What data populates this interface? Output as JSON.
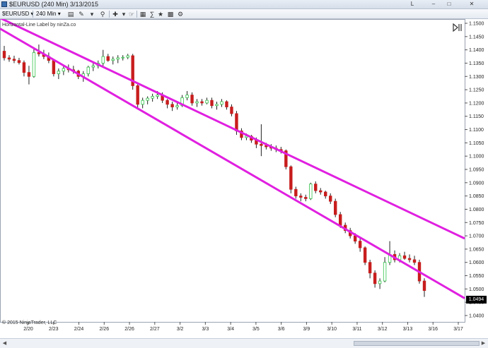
{
  "window": {
    "title": "$EURUSD (240 Min)  3/13/2015",
    "help_label": "L",
    "min_label": "–",
    "max_label": "□",
    "close_label": "✕"
  },
  "toolbar": {
    "instrument": "$EURUSD",
    "interval": "240 Min",
    "icons": [
      "bar-chart-icon",
      "pencil-icon",
      "magnifier-icon",
      "crosshair-icon",
      "hand-icon",
      "grid-icon",
      "indicator-icon",
      "strategy-icon",
      "chart-style-icon",
      "properties-icon"
    ]
  },
  "chart": {
    "indicator_label": "Horizontal-Line Label by ninZa.co",
    "copyright": "© 2015 NinjaTrader, LLC",
    "current_price": "1.0494",
    "channel_color": "#e020e0",
    "up_color": "#34c34a",
    "down_color": "#c81d1d"
  },
  "chart_data": {
    "type": "candlestick",
    "instrument": "$EURUSD",
    "ylim": [
      1.04,
      1.15
    ],
    "y_ticks": [
      "1.1500",
      "1.1450",
      "1.1400",
      "1.1350",
      "1.1300",
      "1.1250",
      "1.1200",
      "1.1150",
      "1.1100",
      "1.1050",
      "1.1000",
      "1.0950",
      "1.0900",
      "1.0850",
      "1.0800",
      "1.0750",
      "1.0700",
      "1.0650",
      "1.0600",
      "1.0550",
      "1.0500",
      "1.0450",
      "1.0400"
    ],
    "x_ticks": [
      "2/20",
      "2/23",
      "2/24",
      "2/26",
      "2/26",
      "2/27",
      "3/2",
      "3/3",
      "3/4",
      "3/5",
      "3/6",
      "3/9",
      "3/10",
      "3/11",
      "3/12",
      "3/13",
      "3/16",
      "3/17"
    ],
    "channel_lines": [
      {
        "name": "upper",
        "start": [
          0,
          1.152
        ],
        "end": [
          1,
          1.069
        ]
      },
      {
        "name": "lower",
        "start": [
          0,
          1.148
        ],
        "end": [
          1,
          1.0465
        ]
      }
    ],
    "candles": [
      [
        1.1395,
        1.1415,
        1.136,
        1.137
      ],
      [
        1.137,
        1.138,
        1.1355,
        1.1365
      ],
      [
        1.1365,
        1.1378,
        1.135,
        1.136
      ],
      [
        1.136,
        1.137,
        1.1345,
        1.1352
      ],
      [
        1.1352,
        1.136,
        1.13,
        1.1315
      ],
      [
        1.1315,
        1.134,
        1.127,
        1.13
      ],
      [
        1.13,
        1.141,
        1.1295,
        1.139
      ],
      [
        1.139,
        1.142,
        1.1375,
        1.1385
      ],
      [
        1.1385,
        1.14,
        1.1365,
        1.1375
      ],
      [
        1.1375,
        1.139,
        1.135,
        1.136
      ],
      [
        1.136,
        1.1365,
        1.13,
        1.131
      ],
      [
        1.131,
        1.133,
        1.129,
        1.132
      ],
      [
        1.132,
        1.134,
        1.1305,
        1.133
      ],
      [
        1.133,
        1.1345,
        1.1315,
        1.1325
      ],
      [
        1.1325,
        1.134,
        1.131,
        1.132
      ],
      [
        1.132,
        1.1325,
        1.129,
        1.13
      ],
      [
        1.13,
        1.132,
        1.128,
        1.131
      ],
      [
        1.131,
        1.134,
        1.13,
        1.1335
      ],
      [
        1.1335,
        1.135,
        1.132,
        1.134
      ],
      [
        1.134,
        1.136,
        1.133,
        1.135
      ],
      [
        1.135,
        1.14,
        1.134,
        1.1375
      ],
      [
        1.1375,
        1.1385,
        1.1355,
        1.136
      ],
      [
        1.136,
        1.1375,
        1.1345,
        1.1365
      ],
      [
        1.1365,
        1.138,
        1.135,
        1.137
      ],
      [
        1.137,
        1.138,
        1.136,
        1.1372
      ],
      [
        1.1372,
        1.1385,
        1.1365,
        1.1378
      ],
      [
        1.1378,
        1.1385,
        1.125,
        1.1265
      ],
      [
        1.1265,
        1.127,
        1.118,
        1.1195
      ],
      [
        1.1195,
        1.122,
        1.118,
        1.121
      ],
      [
        1.121,
        1.1225,
        1.1195,
        1.1218
      ],
      [
        1.1218,
        1.1235,
        1.1205,
        1.1225
      ],
      [
        1.1225,
        1.1245,
        1.1215,
        1.123
      ],
      [
        1.123,
        1.124,
        1.12,
        1.121
      ],
      [
        1.121,
        1.1215,
        1.118,
        1.1195
      ],
      [
        1.1195,
        1.1205,
        1.117,
        1.1185
      ],
      [
        1.1185,
        1.12,
        1.1175,
        1.119
      ],
      [
        1.119,
        1.123,
        1.1185,
        1.122
      ],
      [
        1.122,
        1.1245,
        1.121,
        1.123
      ],
      [
        1.123,
        1.124,
        1.119,
        1.12
      ],
      [
        1.12,
        1.1215,
        1.1185,
        1.1205
      ],
      [
        1.1205,
        1.1215,
        1.119,
        1.12
      ],
      [
        1.12,
        1.122,
        1.1195,
        1.121
      ],
      [
        1.121,
        1.122,
        1.118,
        1.119
      ],
      [
        1.119,
        1.1205,
        1.1175,
        1.1195
      ],
      [
        1.1195,
        1.1215,
        1.1185,
        1.1205
      ],
      [
        1.1205,
        1.121,
        1.1175,
        1.1185
      ],
      [
        1.1185,
        1.1195,
        1.115,
        1.116
      ],
      [
        1.116,
        1.117,
        1.108,
        1.1095
      ],
      [
        1.1095,
        1.1105,
        1.106,
        1.107
      ],
      [
        1.107,
        1.1085,
        1.106,
        1.1075
      ],
      [
        1.1075,
        1.108,
        1.105,
        1.106
      ],
      [
        1.106,
        1.107,
        1.103,
        1.1045
      ],
      [
        1.1045,
        1.112,
        1.1,
        1.104
      ],
      [
        1.104,
        1.105,
        1.1025,
        1.1035
      ],
      [
        1.1035,
        1.1045,
        1.102,
        1.103
      ],
      [
        1.103,
        1.104,
        1.1015,
        1.1025
      ],
      [
        1.1025,
        1.1035,
        1.101,
        1.102
      ],
      [
        1.102,
        1.1025,
        1.095,
        1.096
      ],
      [
        1.096,
        1.0965,
        1.086,
        1.0875
      ],
      [
        1.0875,
        1.0885,
        1.084,
        1.085
      ],
      [
        1.085,
        1.086,
        1.083,
        1.0845
      ],
      [
        1.0845,
        1.0855,
        1.083,
        1.084
      ],
      [
        1.084,
        1.09,
        1.0835,
        1.0895
      ],
      [
        1.0895,
        1.0905,
        1.086,
        1.087
      ],
      [
        1.087,
        1.088,
        1.0855,
        1.0865
      ],
      [
        1.0865,
        1.087,
        1.084,
        1.085
      ],
      [
        1.085,
        1.086,
        1.082,
        1.083
      ],
      [
        1.083,
        1.084,
        1.077,
        1.078
      ],
      [
        1.078,
        1.079,
        1.073,
        1.074
      ],
      [
        1.074,
        1.075,
        1.071,
        1.072
      ],
      [
        1.072,
        1.073,
        1.069,
        1.07
      ],
      [
        1.07,
        1.071,
        1.067,
        1.068
      ],
      [
        1.068,
        1.069,
        1.064,
        1.0655
      ],
      [
        1.0655,
        1.066,
        1.059,
        1.06
      ],
      [
        1.06,
        1.061,
        1.054,
        1.056
      ],
      [
        1.056,
        1.057,
        1.0505,
        1.052
      ],
      [
        1.052,
        1.054,
        1.05,
        1.053
      ],
      [
        1.053,
        1.062,
        1.0525,
        1.06
      ],
      [
        1.06,
        1.068,
        1.059,
        1.063
      ],
      [
        1.063,
        1.0645,
        1.06,
        1.061
      ],
      [
        1.061,
        1.0635,
        1.06,
        1.0625
      ],
      [
        1.0625,
        1.064,
        1.061,
        1.0615
      ],
      [
        1.0615,
        1.063,
        1.06,
        1.061
      ],
      [
        1.061,
        1.0625,
        1.059,
        1.06
      ],
      [
        1.06,
        1.061,
        1.052,
        1.053
      ],
      [
        1.053,
        1.054,
        1.047,
        1.0494
      ]
    ]
  }
}
